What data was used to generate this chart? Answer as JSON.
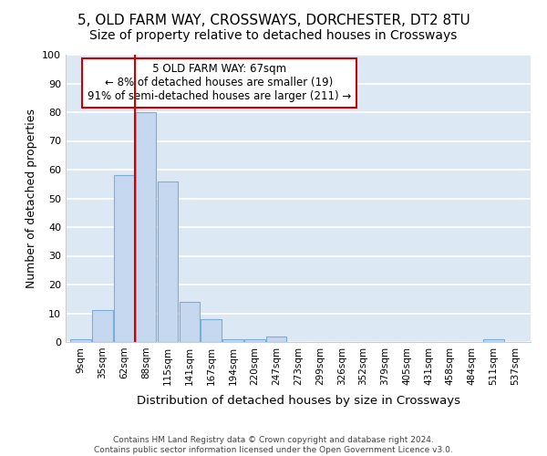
{
  "title": "5, OLD FARM WAY, CROSSWAYS, DORCHESTER, DT2 8TU",
  "subtitle": "Size of property relative to detached houses in Crossways",
  "xlabel": "Distribution of detached houses by size in Crossways",
  "ylabel": "Number of detached properties",
  "bins": [
    "9sqm",
    "35sqm",
    "62sqm",
    "88sqm",
    "115sqm",
    "141sqm",
    "167sqm",
    "194sqm",
    "220sqm",
    "247sqm",
    "273sqm",
    "299sqm",
    "326sqm",
    "352sqm",
    "379sqm",
    "405sqm",
    "431sqm",
    "458sqm",
    "484sqm",
    "511sqm",
    "537sqm"
  ],
  "values": [
    1,
    11,
    58,
    80,
    56,
    14,
    8,
    1,
    1,
    2,
    0,
    0,
    0,
    0,
    0,
    0,
    0,
    0,
    0,
    1,
    0
  ],
  "bar_color": "#c5d8f0",
  "bar_edge_color": "#7aaed6",
  "marker_line_color": "#cc0000",
  "annotation_line1": "5 OLD FARM WAY: 67sqm",
  "annotation_line2": "← 8% of detached houses are smaller (19)",
  "annotation_line3": "91% of semi-detached houses are larger (211) →",
  "annotation_box_color": "#ffffff",
  "annotation_box_edge": "#cc0000",
  "ylim": [
    0,
    100
  ],
  "fig_bg_color": "#ffffff",
  "plot_bg_color": "#dce9f5",
  "grid_color": "#ffffff",
  "title_fontsize": 11,
  "subtitle_fontsize": 10,
  "footer1": "Contains HM Land Registry data © Crown copyright and database right 2024.",
  "footer2": "Contains public sector information licensed under the Open Government Licence v3.0."
}
